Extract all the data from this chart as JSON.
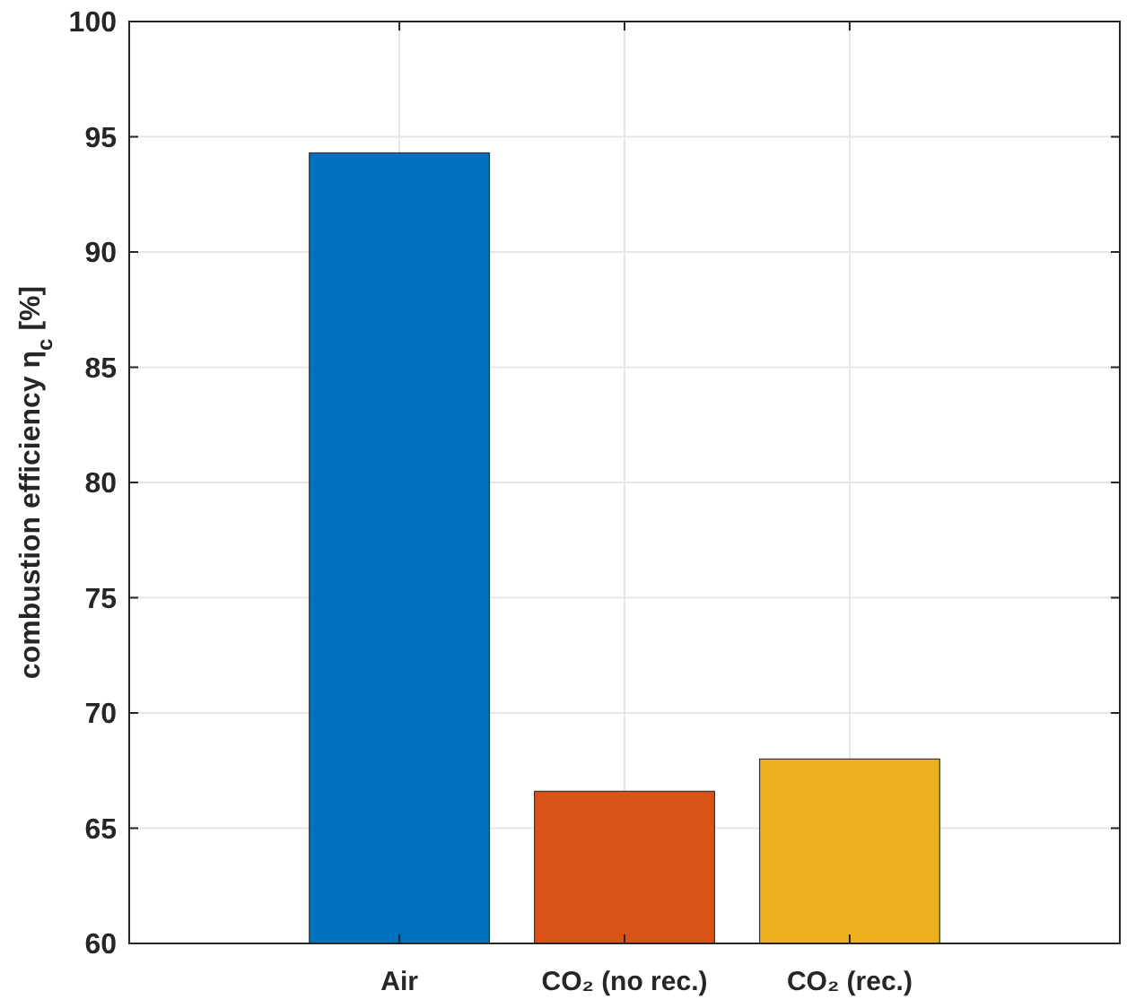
{
  "chart_data": {
    "type": "bar",
    "ylabel": "combustion efficiency η$_{c}$ [%]",
    "categories": [
      "Air",
      "CO₂ (no rec.)",
      "CO₂ (rec.)"
    ],
    "values": [
      94.3,
      66.6,
      68.0
    ],
    "colors": [
      "#0072bd",
      "#d95319",
      "#edb120"
    ],
    "ylim": [
      60,
      100
    ],
    "yticks": [
      60,
      65,
      70,
      75,
      80,
      85,
      90,
      95,
      100
    ],
    "grid": true
  }
}
